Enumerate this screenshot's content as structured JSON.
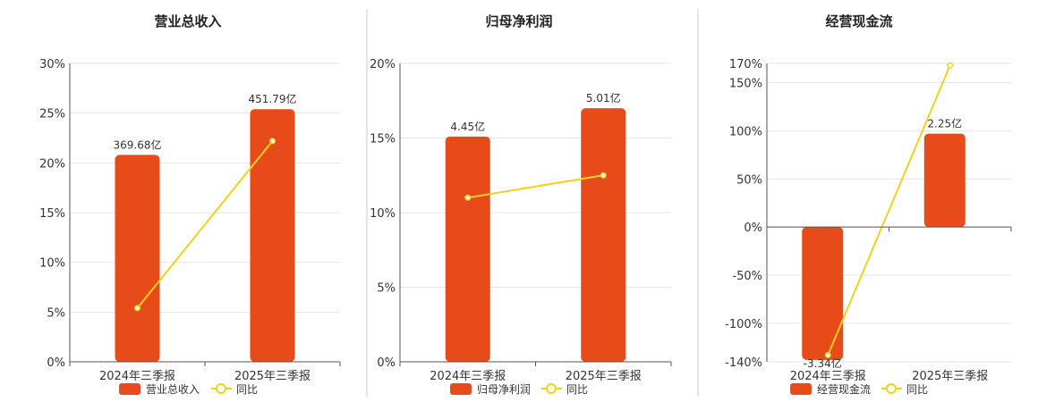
{
  "colors": {
    "bar": "#E84B1A",
    "line": "#F2D21B"
  },
  "chart_data": [
    {
      "type": "bar",
      "title": "营业总收入",
      "categories": [
        "2024年三季报",
        "2025年三季报"
      ],
      "series": [
        {
          "name": "营业总收入",
          "type": "bar",
          "values": [
            20.8,
            25.4
          ],
          "labels": [
            "369.68亿",
            "451.79亿"
          ]
        },
        {
          "name": "同比",
          "type": "line",
          "values": [
            5.4,
            22.2
          ]
        }
      ],
      "y_ticks": [
        "0%",
        "5%",
        "10%",
        "15%",
        "20%",
        "25%",
        "30%"
      ],
      "ylim": [
        0,
        30
      ],
      "grid": true,
      "legend": "bottom"
    },
    {
      "type": "bar",
      "title": "归母净利润",
      "categories": [
        "2024年三季报",
        "2025年三季报"
      ],
      "series": [
        {
          "name": "归母净利润",
          "type": "bar",
          "values": [
            15.1,
            17.0
          ],
          "labels": [
            "4.45亿",
            "5.01亿"
          ]
        },
        {
          "name": "同比",
          "type": "line",
          "values": [
            11.0,
            12.5
          ]
        }
      ],
      "y_ticks": [
        "0%",
        "5%",
        "10%",
        "15%",
        "20%"
      ],
      "ylim": [
        0,
        20
      ],
      "grid": true,
      "legend": "bottom"
    },
    {
      "type": "bar",
      "title": "经营现金流",
      "categories": [
        "2024年三季报",
        "2025年三季报"
      ],
      "series": [
        {
          "name": "经营现金流",
          "type": "bar",
          "values": [
            -138,
            97
          ],
          "labels": [
            "-3.34亿",
            "2.25亿"
          ]
        },
        {
          "name": "同比",
          "type": "line",
          "values": [
            -133,
            168
          ]
        }
      ],
      "y_ticks": [
        "-140%",
        "-100%",
        "-50%",
        "0%",
        "50%",
        "100%",
        "150%",
        "170%"
      ],
      "ylim": [
        -140,
        170
      ],
      "grid": true,
      "legend": "bottom"
    }
  ]
}
